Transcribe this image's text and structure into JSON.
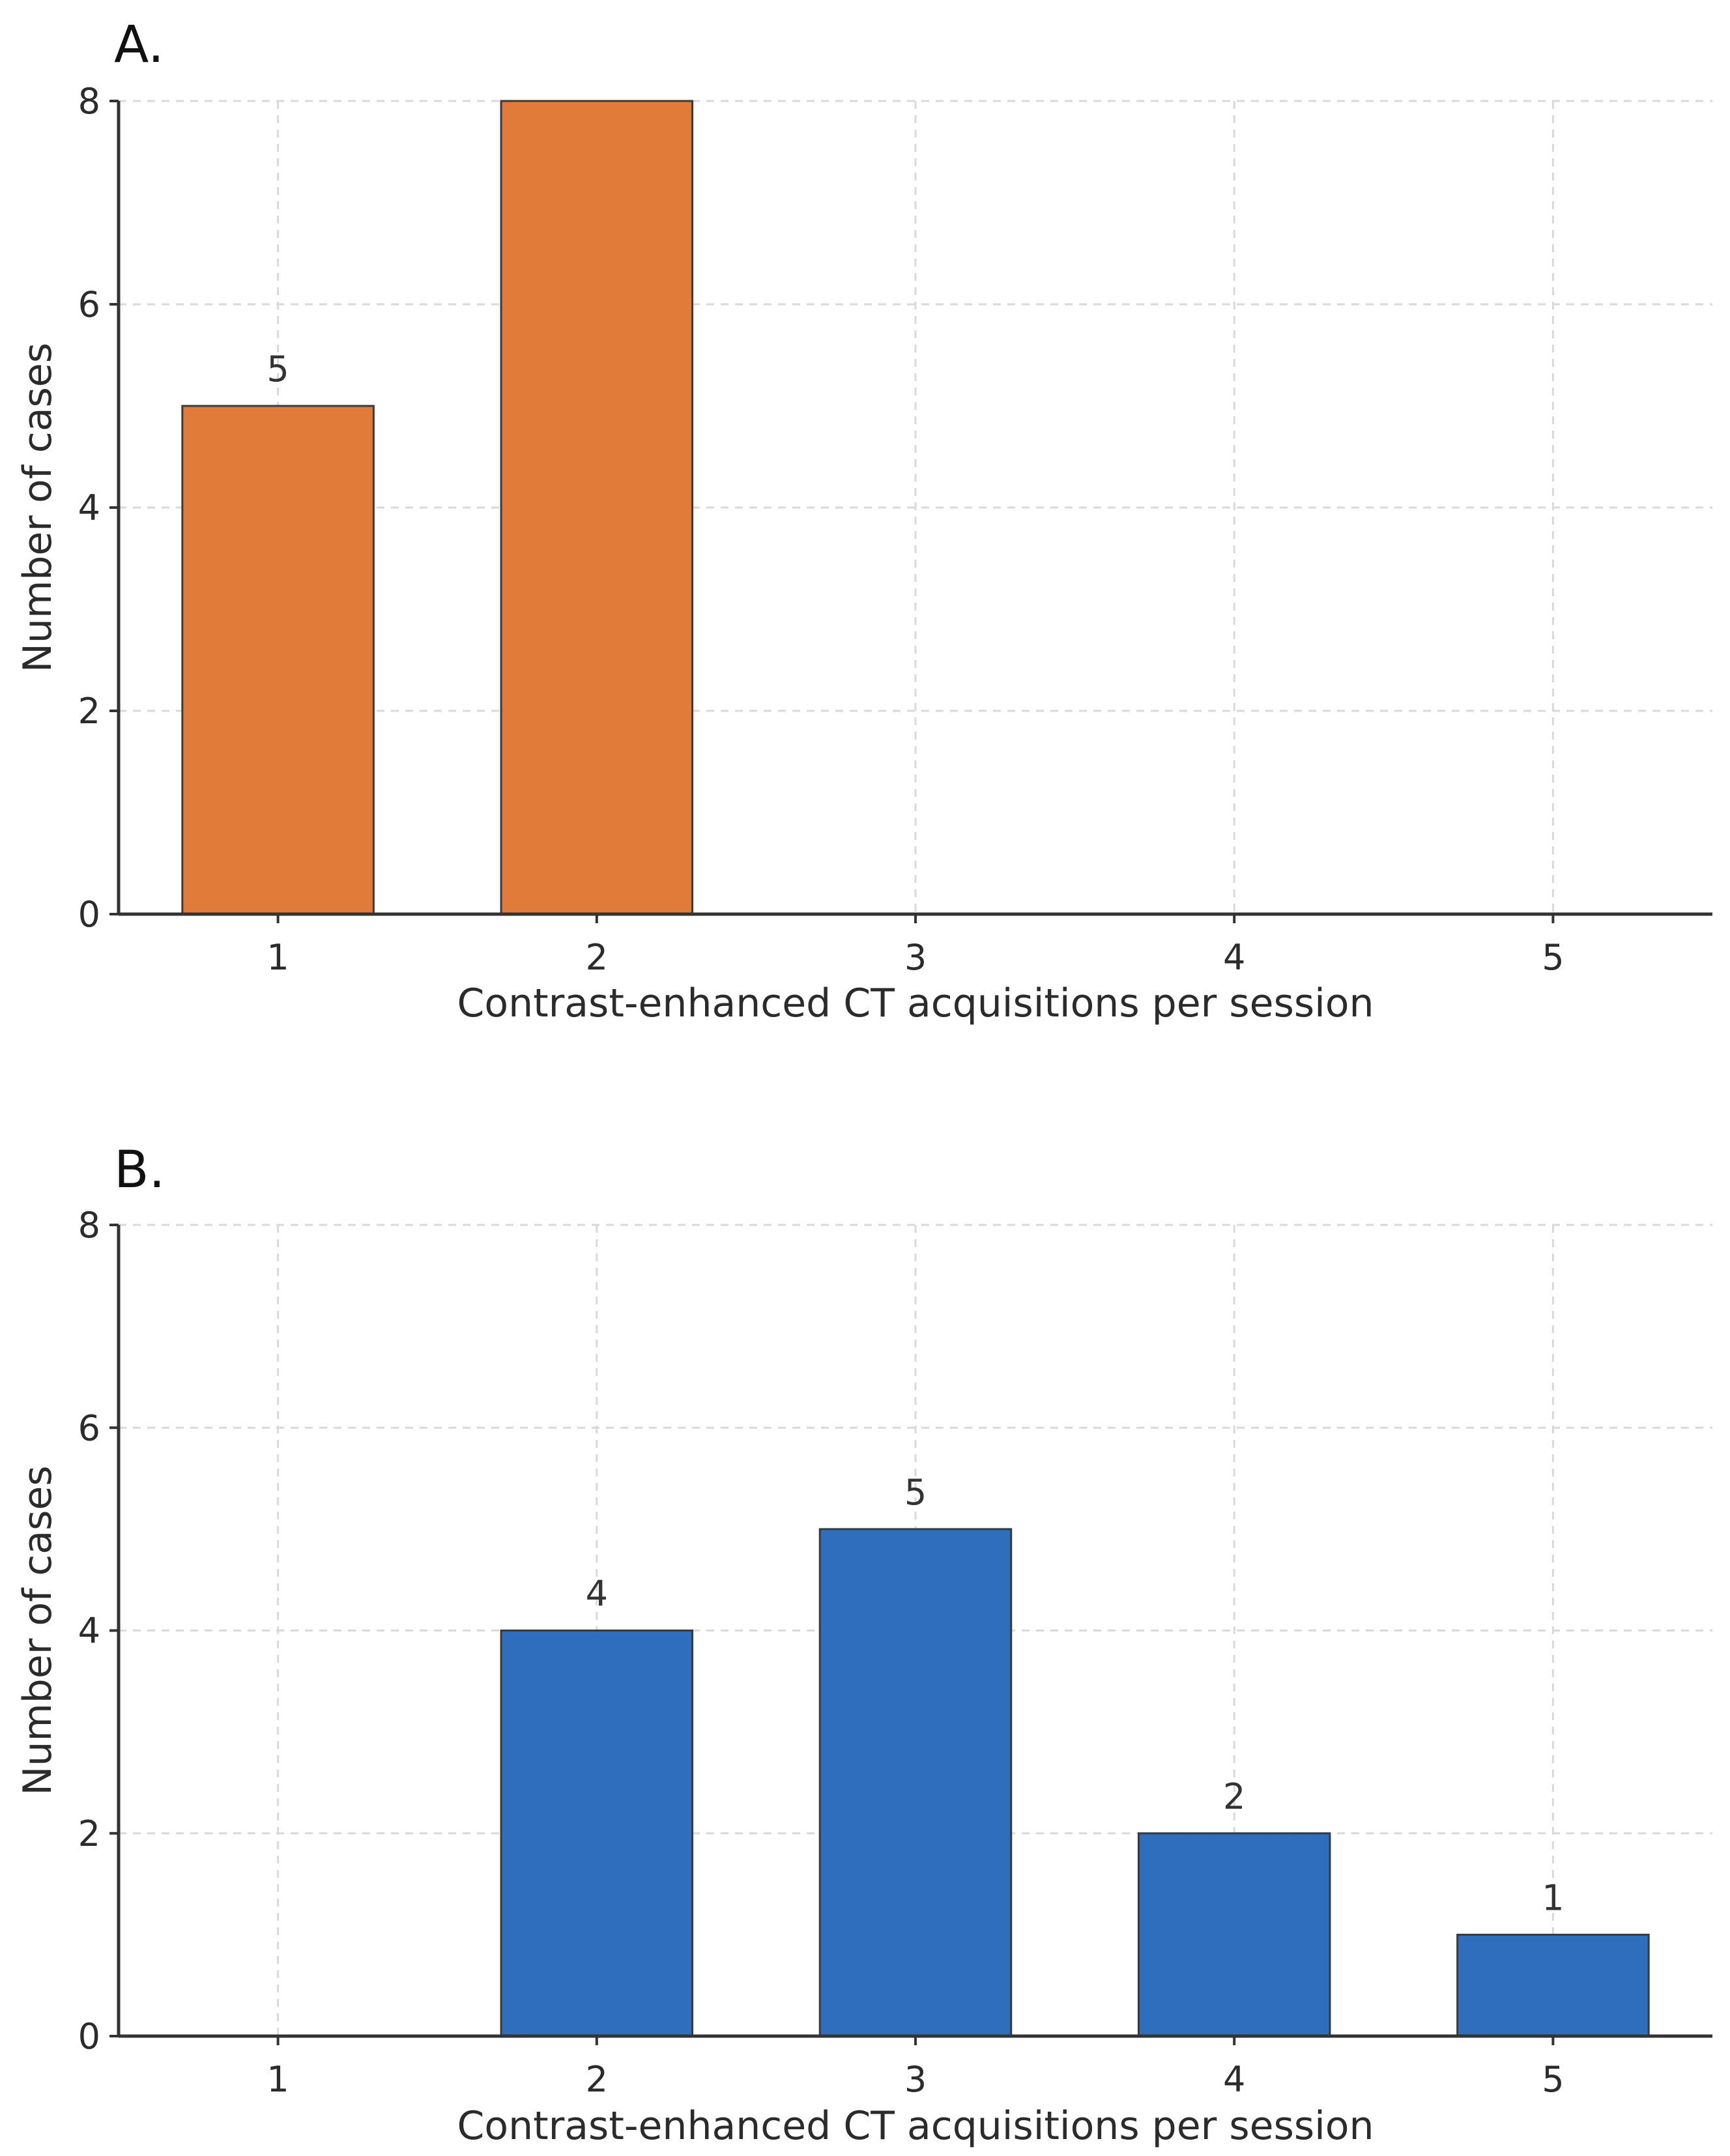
{
  "chart_data": [
    {
      "type": "bar",
      "panel_label": "A.",
      "categories": [
        1,
        2,
        3,
        4,
        5
      ],
      "values": [
        5,
        8,
        0,
        0,
        0
      ],
      "data_labels": [
        "5",
        "",
        "",
        "",
        ""
      ],
      "xlabel": "Contrast-enhanced CT acquisitions per session",
      "ylabel": "Number of cases",
      "ylim": [
        0,
        8
      ],
      "yticks": [
        0,
        2,
        4,
        6,
        8
      ],
      "xticks": [
        "1",
        "2",
        "3",
        "4",
        "5"
      ],
      "color": "#e07b39",
      "grid": true
    },
    {
      "type": "bar",
      "panel_label": "B.",
      "categories": [
        1,
        2,
        3,
        4,
        5
      ],
      "values": [
        0,
        4,
        5,
        2,
        1
      ],
      "data_labels": [
        "",
        "4",
        "5",
        "2",
        "1"
      ],
      "xlabel": "Contrast-enhanced CT acquisitions per session",
      "ylabel": "Number of cases",
      "ylim": [
        0,
        8
      ],
      "yticks": [
        0,
        2,
        4,
        6,
        8
      ],
      "xticks": [
        "1",
        "2",
        "3",
        "4",
        "5"
      ],
      "color": "#2e6ebc",
      "grid": true
    }
  ]
}
